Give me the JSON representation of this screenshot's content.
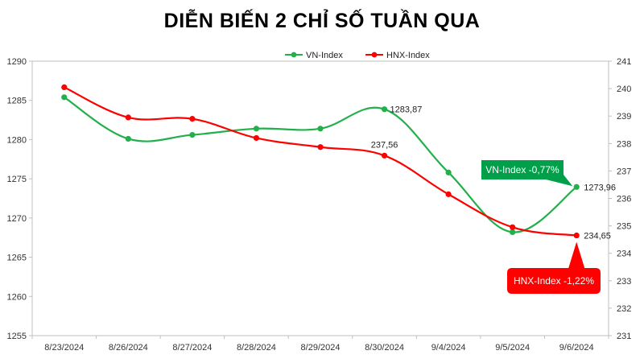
{
  "chart_data": {
    "type": "line",
    "title": "DIỄN BIẾN 2 CHỈ SỐ TUẦN QUA",
    "categories": [
      "8/23/2024",
      "8/26/2024",
      "8/27/2024",
      "8/28/2024",
      "8/29/2024",
      "8/30/2024",
      "9/4/2024",
      "9/5/2024",
      "9/6/2024"
    ],
    "series": [
      {
        "name": "VN-Index",
        "axis": "left",
        "color": "#22b04b",
        "values": [
          1285.4,
          1280.1,
          1280.6,
          1281.4,
          1281.4,
          1283.87,
          1275.8,
          1268.2,
          1273.96
        ]
      },
      {
        "name": "HNX-Index",
        "axis": "right",
        "color": "#ff0000",
        "values": [
          240.05,
          238.95,
          238.9,
          238.2,
          237.87,
          237.56,
          236.15,
          234.95,
          234.65
        ]
      }
    ],
    "y_left": {
      "min": 1255,
      "max": 1290,
      "step": 5,
      "ticks": [
        "1255",
        "1260",
        "1265",
        "1270",
        "1275",
        "1280",
        "1285",
        "1290"
      ]
    },
    "y_right": {
      "min": 231,
      "max": 241,
      "step": 1,
      "ticks": [
        "231",
        "232",
        "233",
        "234",
        "235",
        "236",
        "237",
        "238",
        "239",
        "240",
        "241"
      ]
    },
    "data_labels": [
      {
        "series": 0,
        "index": 5,
        "text": "1283,87"
      },
      {
        "series": 0,
        "index": 8,
        "text": "1273,96"
      },
      {
        "series": 1,
        "index": 5,
        "text": "237,56"
      },
      {
        "series": 1,
        "index": 8,
        "text": "234,65"
      }
    ],
    "callouts": [
      {
        "text": "VN-Index -0,77%",
        "bg": "#00a04a",
        "fg": "#ffffff",
        "series": 0,
        "index": 8
      },
      {
        "text": "HNX-Index -1,22%",
        "bg": "#ff0000",
        "fg": "#ffffff",
        "series": 1,
        "index": 8
      }
    ],
    "legend_position": "top-center",
    "grid": false
  }
}
